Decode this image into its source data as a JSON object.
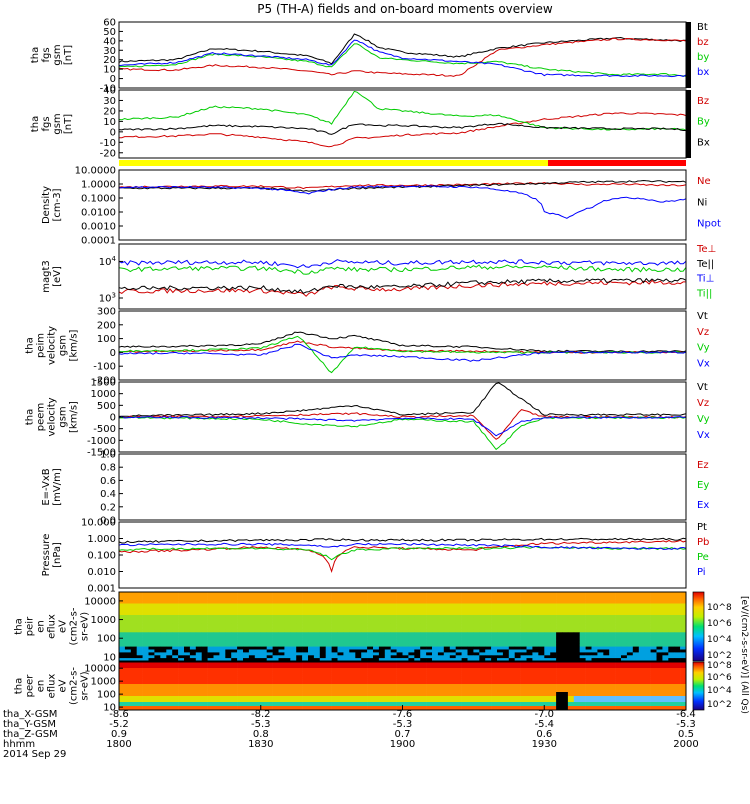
{
  "title": "P5 (TH-A) fields and on-board moments overview",
  "date_label": "2014 Sep 29",
  "x_axis": {
    "row_labels": [
      "tha_X-GSM",
      "tha_Y-GSM",
      "tha_Z-GSM",
      "hhmm"
    ],
    "columns": [
      [
        "-8.6",
        "-5.2",
        "0.9",
        "1800"
      ],
      [
        "-8.2",
        "-5.3",
        "0.8",
        "1830"
      ],
      [
        "-7.6",
        "-5.3",
        "0.7",
        "1900"
      ],
      [
        "-7.0",
        "-5.4",
        "0.6",
        "1930"
      ],
      [
        "-6.4",
        "-5.3",
        "0.5",
        "2000"
      ]
    ]
  },
  "mode_bar": {
    "colors": [
      "#ffff00",
      "#ff0000"
    ],
    "switch_time_hhmm": "1930"
  },
  "colors": {
    "black": "#000000",
    "red": "#d00000",
    "green": "#00cc00",
    "blue": "#0000ff"
  },
  "spec_colorbar": {
    "title": "[eV/(cm2-s-sr-eV)] (All Qs)",
    "ticks_top": [
      "10^8",
      "10^6",
      "10^4",
      "10^2"
    ],
    "ticks_bottom": [
      "10^8",
      "10^6",
      "10^4",
      "10^2"
    ]
  },
  "chart_data": [
    {
      "type": "line",
      "panel": "fgs_total",
      "ylabel": [
        "tha",
        "fgs",
        "gsm",
        "[nT]"
      ],
      "yticks": [
        "60",
        "50",
        "40",
        "30",
        "20",
        "10",
        "0",
        "-10"
      ],
      "ylim": [
        -10,
        60
      ],
      "x": [
        1800,
        1812,
        1820,
        1830,
        1840,
        1845,
        1850,
        1855,
        1900,
        1912,
        1920,
        1930,
        1945,
        1955,
        2000
      ],
      "series": [
        {
          "name": "Bt",
          "color": "#000000",
          "values": [
            18,
            20,
            32,
            29,
            24,
            16,
            48,
            33,
            28,
            23,
            32,
            38,
            43,
            41,
            40
          ]
        },
        {
          "name": "bz",
          "color": "#d00000",
          "values": [
            10,
            9,
            14,
            12,
            8,
            4,
            8,
            6,
            5,
            3,
            30,
            36,
            42,
            41,
            40
          ]
        },
        {
          "name": "by",
          "color": "#00cc00",
          "values": [
            12,
            15,
            26,
            23,
            18,
            12,
            38,
            22,
            20,
            16,
            18,
            10,
            4,
            5,
            3
          ]
        },
        {
          "name": "bx",
          "color": "#0000ff",
          "values": [
            14,
            17,
            27,
            24,
            20,
            14,
            42,
            28,
            22,
            18,
            15,
            4,
            3,
            3,
            3
          ]
        }
      ]
    },
    {
      "type": "line",
      "panel": "fgs_components",
      "ylabel": [
        "tha",
        "fgs",
        "gsm",
        "[nT]"
      ],
      "yticks": [
        "40",
        "30",
        "20",
        "10",
        "0",
        "-10",
        "-20"
      ],
      "ylim": [
        -25,
        40
      ],
      "x": [
        1800,
        1812,
        1820,
        1830,
        1840,
        1845,
        1850,
        1855,
        1900,
        1912,
        1920,
        1930,
        1945,
        1955,
        2000
      ],
      "series": [
        {
          "name": "Bz",
          "color": "#d00000",
          "values": [
            -5,
            -4,
            -2,
            -5,
            -10,
            -14,
            -6,
            -5,
            -3,
            -1,
            5,
            12,
            18,
            17,
            16
          ]
        },
        {
          "name": "By",
          "color": "#00cc00",
          "values": [
            12,
            14,
            24,
            22,
            16,
            8,
            40,
            22,
            20,
            15,
            16,
            4,
            2,
            3,
            2
          ]
        },
        {
          "name": "Bx",
          "color": "#000000",
          "values": [
            2,
            3,
            6,
            5,
            3,
            -2,
            8,
            6,
            6,
            4,
            8,
            4,
            3,
            3,
            2
          ]
        }
      ]
    },
    {
      "type": "line",
      "panel": "density",
      "scale": "log",
      "ylabel": [
        "Density",
        "[cm-3]"
      ],
      "yticks": [
        "10.0000",
        "1.0000",
        "0.1000",
        "0.0100",
        "0.0010",
        "0.0001"
      ],
      "ylim": [
        0.0001,
        10
      ],
      "x": [
        1800,
        1815,
        1830,
        1840,
        1850,
        1900,
        1915,
        1930,
        1935,
        1940,
        1945,
        1950,
        1955,
        2000
      ],
      "series": [
        {
          "name": "Ne",
          "color": "#d00000",
          "values": [
            0.6,
            0.7,
            0.7,
            0.5,
            0.8,
            0.8,
            0.9,
            1.2,
            1.0,
            0.9,
            1.0,
            0.9,
            0.8,
            0.8
          ]
        },
        {
          "name": "Ni",
          "color": "#000000",
          "values": [
            0.5,
            0.5,
            0.5,
            0.3,
            0.5,
            0.6,
            0.8,
            1.1,
            1.3,
            1.4,
            1.5,
            1.6,
            1.5,
            1.5
          ]
        },
        {
          "name": "Npot",
          "color": "#0000ff",
          "values": [
            0.6,
            0.6,
            0.5,
            0.2,
            0.6,
            0.7,
            0.6,
            0.01,
            0.003,
            0.02,
            0.1,
            0.1,
            0.05,
            0.08
          ]
        }
      ]
    },
    {
      "type": "line",
      "panel": "temperature",
      "scale": "log",
      "ylabel": [
        "magt3",
        "[eV]"
      ],
      "yticks": [
        "10^4",
        "10^3"
      ],
      "ylim": [
        500,
        30000
      ],
      "x": [
        1800,
        1815,
        1830,
        1840,
        1845,
        1850,
        1900,
        1915,
        1930,
        1945,
        2000
      ],
      "series": [
        {
          "name": "Te⊥",
          "color": "#d00000",
          "values": [
            1500,
            1600,
            1600,
            1200,
            2000,
            1800,
            1700,
            2200,
            2500,
            2600,
            2700
          ]
        },
        {
          "name": "Te||",
          "color": "#000000",
          "values": [
            1800,
            1900,
            1900,
            1400,
            2200,
            2000,
            2000,
            2600,
            2900,
            3000,
            3000
          ]
        },
        {
          "name": "Ti⊥",
          "color": "#0000ff",
          "values": [
            9000,
            9500,
            9500,
            7000,
            10000,
            9500,
            9000,
            10000,
            9500,
            9000,
            9000
          ]
        },
        {
          "name": "Ti||",
          "color": "#00cc00",
          "values": [
            6000,
            6500,
            6500,
            5000,
            6500,
            6000,
            6000,
            7000,
            7000,
            6000,
            6000
          ]
        }
      ]
    },
    {
      "type": "line",
      "panel": "peim_velocity",
      "ylabel": [
        "tha",
        "peim",
        "velocity",
        "gsm",
        "[km/s]"
      ],
      "yticks": [
        "300",
        "200",
        "100",
        "0",
        "-100",
        "-200"
      ],
      "ylim": [
        -200,
        300
      ],
      "x": [
        1800,
        1815,
        1830,
        1838,
        1845,
        1850,
        1900,
        1915,
        1930,
        1945,
        2000
      ],
      "series": [
        {
          "name": "Vt",
          "color": "#000000",
          "values": [
            40,
            45,
            60,
            150,
            100,
            120,
            50,
            40,
            10,
            8,
            8
          ]
        },
        {
          "name": "Vz",
          "color": "#d00000",
          "values": [
            5,
            10,
            20,
            80,
            40,
            30,
            10,
            10,
            0,
            0,
            0
          ]
        },
        {
          "name": "Vy",
          "color": "#00cc00",
          "values": [
            10,
            15,
            30,
            120,
            -150,
            40,
            10,
            0,
            0,
            0,
            0
          ]
        },
        {
          "name": "Vx",
          "color": "#0000ff",
          "values": [
            -10,
            -5,
            -20,
            60,
            -40,
            -20,
            -30,
            -60,
            0,
            0,
            0
          ]
        }
      ]
    },
    {
      "type": "line",
      "panel": "peem_velocity",
      "ylabel": [
        "tha",
        "peem",
        "velocity",
        "gsm",
        "[km/s]"
      ],
      "yticks": [
        "1500",
        "1000",
        "500",
        "0",
        "-500",
        "-1000",
        "-1500"
      ],
      "ylim": [
        -1500,
        1500
      ],
      "x": [
        1800,
        1815,
        1830,
        1840,
        1850,
        1900,
        1915,
        1920,
        1925,
        1930,
        1945,
        2000
      ],
      "series": [
        {
          "name": "Vt",
          "color": "#000000",
          "values": [
            50,
            80,
            150,
            300,
            500,
            100,
            200,
            1500,
            800,
            100,
            100,
            100
          ]
        },
        {
          "name": "Vz",
          "color": "#d00000",
          "values": [
            0,
            20,
            50,
            100,
            150,
            0,
            50,
            -1000,
            300,
            0,
            0,
            0
          ]
        },
        {
          "name": "Vy",
          "color": "#00cc00",
          "values": [
            -20,
            -50,
            -100,
            -300,
            -400,
            -100,
            -200,
            -1400,
            -400,
            -50,
            -30,
            -30
          ]
        },
        {
          "name": "Vx",
          "color": "#0000ff",
          "values": [
            -10,
            -20,
            -40,
            -100,
            -150,
            -50,
            -100,
            -800,
            -200,
            -30,
            -20,
            -20
          ]
        }
      ]
    },
    {
      "type": "line",
      "panel": "efield",
      "ylabel": [
        "E=-VxB",
        "[mV/m]"
      ],
      "yticks": [
        "1.0",
        "0.8",
        "0.6",
        "0.4",
        "0.2",
        "0.0"
      ],
      "ylim": [
        0,
        1
      ],
      "x": [],
      "series": [
        {
          "name": "Ez",
          "color": "#d00000",
          "values": []
        },
        {
          "name": "Ey",
          "color": "#00cc00",
          "values": []
        },
        {
          "name": "Ex",
          "color": "#0000ff",
          "values": []
        }
      ]
    },
    {
      "type": "line",
      "panel": "pressure",
      "scale": "log",
      "ylabel": [
        "Pressure",
        "[nPa]"
      ],
      "yticks": [
        "10.000",
        "1.000",
        "0.100",
        "0.010",
        "0.001"
      ],
      "ylim": [
        0.001,
        10
      ],
      "x": [
        1800,
        1815,
        1830,
        1840,
        1845,
        1850,
        1900,
        1915,
        1930,
        1945,
        2000
      ],
      "series": [
        {
          "name": "Pt",
          "color": "#000000",
          "values": [
            0.6,
            0.7,
            0.8,
            0.8,
            0.9,
            0.8,
            0.8,
            0.8,
            0.9,
            0.9,
            0.9
          ]
        },
        {
          "name": "Pb",
          "color": "#d00000",
          "values": [
            0.15,
            0.2,
            0.3,
            0.2,
            0.01,
            0.3,
            0.25,
            0.2,
            0.5,
            0.6,
            0.7
          ]
        },
        {
          "name": "Pe",
          "color": "#00cc00",
          "values": [
            0.2,
            0.25,
            0.25,
            0.2,
            0.05,
            0.2,
            0.25,
            0.25,
            0.3,
            0.25,
            0.25
          ]
        },
        {
          "name": "Pi",
          "color": "#0000ff",
          "values": [
            0.4,
            0.45,
            0.45,
            0.4,
            0.3,
            0.45,
            0.45,
            0.4,
            0.3,
            0.25,
            0.25
          ]
        }
      ]
    },
    {
      "type": "heatmap",
      "panel": "peir_spectrogram",
      "ylabel": [
        "tha",
        "peir",
        "en",
        "eflux",
        "eV",
        "(cm2-s-",
        "sr-eV)"
      ],
      "yticks": [
        "10000",
        "1000",
        "100",
        "10"
      ],
      "ylim": [
        6,
        30000
      ],
      "scale": "log"
    },
    {
      "type": "heatmap",
      "panel": "peer_spectrogram",
      "ylabel": [
        "tha",
        "peer",
        "en",
        "eflux",
        "eV",
        "(cm2-s-",
        "sr-eV)"
      ],
      "yticks": [
        "10000",
        "1000",
        "100",
        "10"
      ],
      "ylim": [
        6,
        30000
      ],
      "scale": "log"
    }
  ]
}
